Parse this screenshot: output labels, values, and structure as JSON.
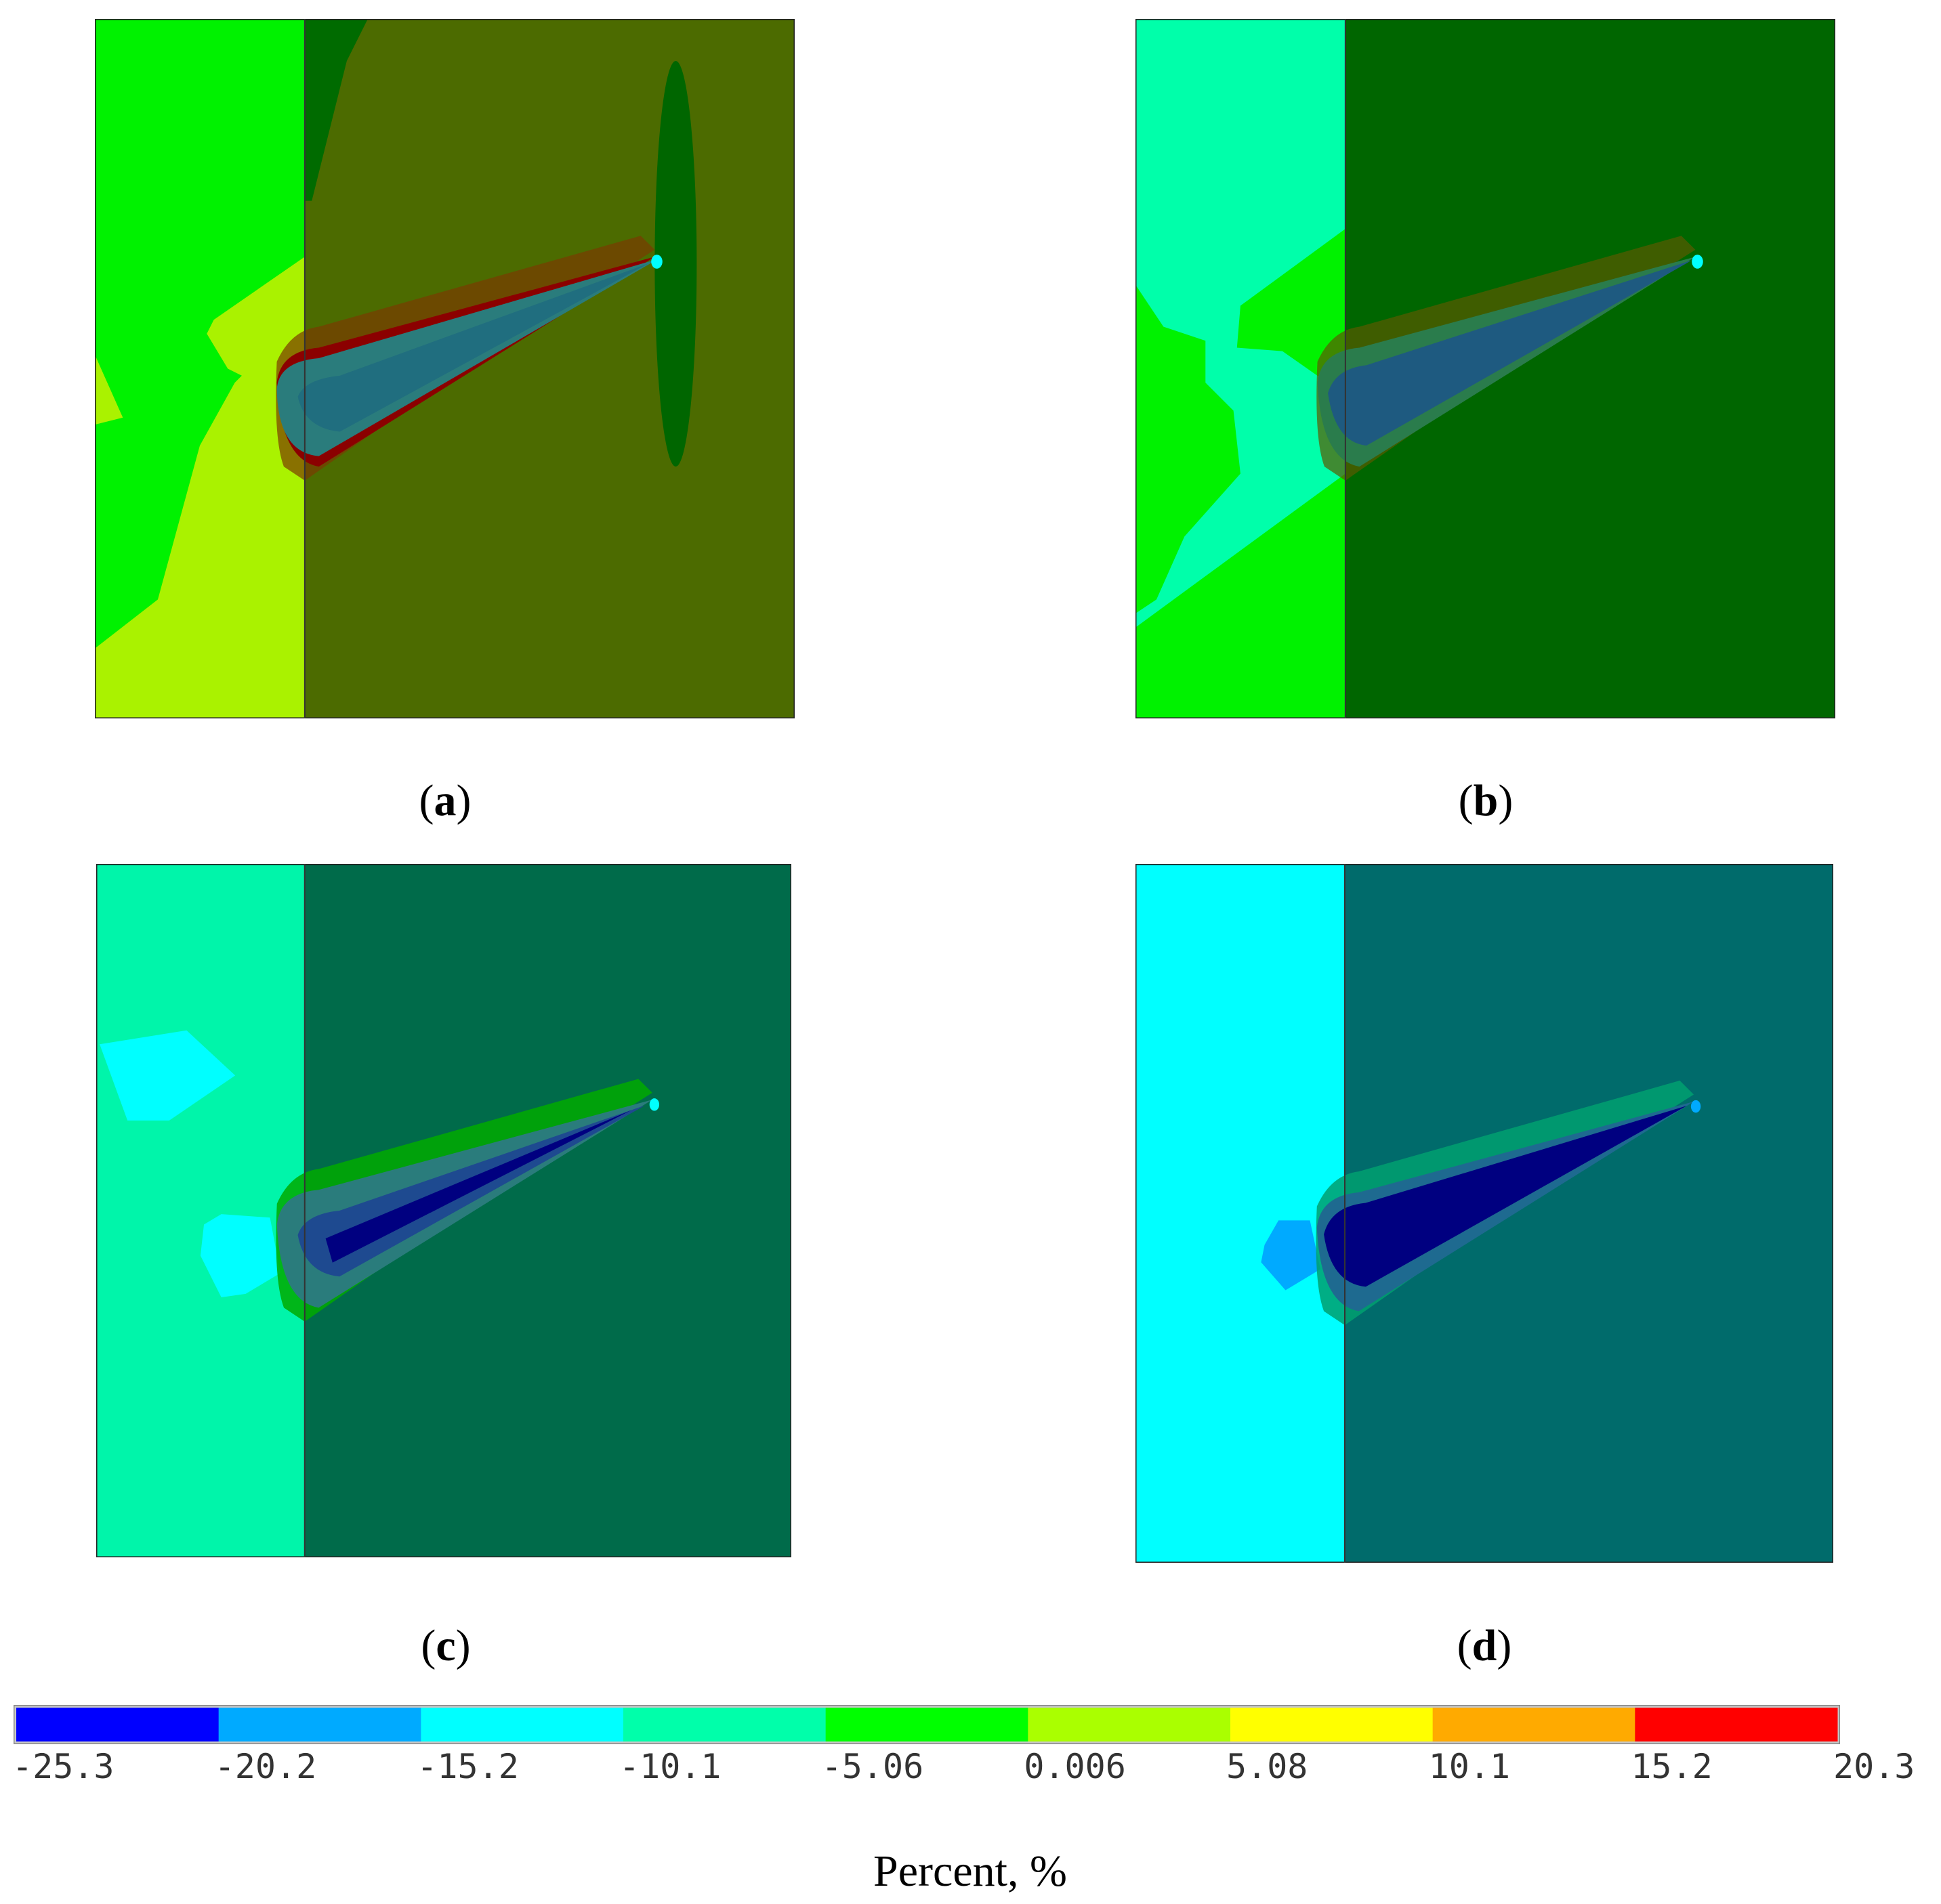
{
  "figure": {
    "panels": [
      {
        "id": "a",
        "label": "a",
        "left_color": "#00f200",
        "right_color": "#4c6b00"
      },
      {
        "id": "b",
        "label": "b",
        "left_color": "#00ffaa",
        "right_color": "#006600"
      },
      {
        "id": "c",
        "label": "c",
        "left_color": "#00f5aa",
        "right_color": "#006b4a"
      },
      {
        "id": "d",
        "label": "d",
        "left_color": "#00ffff",
        "right_color": "#006b6b"
      }
    ],
    "colorbar": {
      "colors": [
        "#0000ff",
        "#00aaff",
        "#00ffff",
        "#00ffaa",
        "#00ff00",
        "#aaff00",
        "#ffff00",
        "#ffaa00",
        "#ff0000"
      ],
      "ticks": [
        "-25.3",
        "-20.2",
        "-15.2",
        "-10.1",
        "-5.06",
        "0.006",
        "5.08",
        "10.1",
        "15.2",
        "20.3"
      ],
      "unit_label": "Percent, %"
    }
  }
}
